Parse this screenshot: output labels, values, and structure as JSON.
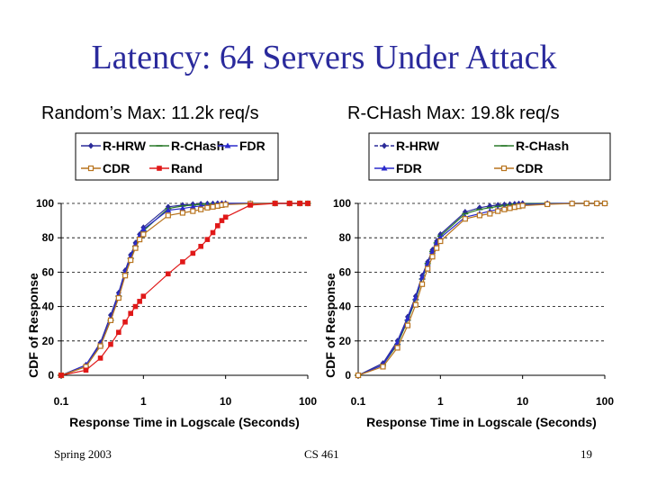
{
  "slide": {
    "title": "Latency: 64 Servers Under Attack",
    "footer_left": "Spring 2003",
    "footer_center": "CS 461",
    "footer_right": "19"
  },
  "chart_data": [
    {
      "type": "line",
      "title": "Random’s Max: 11.2k req/s",
      "xlabel": "Response Time in Logscale (Seconds)",
      "ylabel": "CDF of Response",
      "xscale": "log",
      "xlim": [
        0.1,
        100
      ],
      "ylim": [
        0,
        100
      ],
      "xticks": [
        "0.1",
        "1",
        "10",
        "100"
      ],
      "yticks": [
        "0",
        "20",
        "40",
        "60",
        "80",
        "100"
      ],
      "grid": "horizontal dashed",
      "legend_position": "top",
      "series": [
        {
          "name": "R-HRW",
          "color": "#2b2b99",
          "marker": "diamond",
          "x": [
            0.1,
            0.2,
            0.3,
            0.4,
            0.5,
            0.6,
            0.7,
            0.8,
            0.9,
            1,
            2,
            3,
            4,
            5,
            6,
            7,
            8,
            9,
            10,
            20,
            40,
            60,
            80,
            100
          ],
          "y": [
            0,
            6,
            19,
            35,
            48,
            61,
            70,
            77,
            82,
            86,
            98,
            99,
            99.5,
            99.7,
            99.8,
            99.9,
            100,
            100,
            100,
            100,
            100,
            100,
            100,
            100
          ]
        },
        {
          "name": "R-CHash",
          "color": "#2a7a2a",
          "marker": "dash",
          "x": [
            0.1,
            0.2,
            0.3,
            0.4,
            0.5,
            0.6,
            0.7,
            0.8,
            0.9,
            1,
            2,
            3,
            4,
            5,
            6,
            7,
            8,
            9,
            10,
            20,
            40,
            60,
            80,
            100
          ],
          "y": [
            0,
            5,
            17,
            32,
            46,
            59,
            68,
            75,
            80,
            84,
            97,
            98.5,
            99,
            99.5,
            99.7,
            99.8,
            99.9,
            100,
            100,
            100,
            100,
            100,
            100,
            100
          ]
        },
        {
          "name": "FDR",
          "color": "#2b2bcc",
          "marker": "triangle",
          "x": [
            0.1,
            0.2,
            0.3,
            0.4,
            0.5,
            0.6,
            0.7,
            0.8,
            0.9,
            1,
            2,
            3,
            4,
            5,
            6,
            7,
            8,
            9,
            10,
            20,
            40,
            60,
            80,
            100
          ],
          "y": [
            0,
            6,
            18,
            33,
            47,
            60,
            69,
            76,
            81,
            85,
            96,
            97,
            98,
            98.5,
            99,
            99.3,
            99.5,
            99.8,
            100,
            100,
            100,
            100,
            100,
            100
          ]
        },
        {
          "name": "CDR",
          "color": "#b8741e",
          "marker": "square-open",
          "x": [
            0.1,
            0.2,
            0.3,
            0.4,
            0.5,
            0.6,
            0.7,
            0.8,
            0.9,
            1,
            2,
            3,
            4,
            5,
            6,
            7,
            8,
            9,
            10,
            20,
            40,
            60,
            80,
            100
          ],
          "y": [
            0,
            5,
            17,
            32,
            45,
            58,
            67,
            74,
            79,
            82,
            93,
            94.5,
            95.5,
            96.5,
            97.5,
            98,
            98.5,
            99,
            99.3,
            99.8,
            100,
            100,
            100,
            100
          ]
        },
        {
          "name": "Rand",
          "color": "#e01818",
          "marker": "square",
          "x": [
            0.1,
            0.2,
            0.3,
            0.4,
            0.5,
            0.6,
            0.7,
            0.8,
            0.9,
            1,
            2,
            3,
            4,
            5,
            6,
            7,
            8,
            9,
            10,
            20,
            40,
            60,
            80,
            100
          ],
          "y": [
            0,
            3,
            10,
            18,
            25,
            31,
            36,
            40,
            43,
            46,
            59,
            66,
            71,
            75,
            79,
            83,
            87,
            90,
            92,
            99,
            100,
            100,
            100,
            100
          ]
        }
      ]
    },
    {
      "type": "line",
      "title": "R-CHash Max: 19.8k req/s",
      "xlabel": "Response Time in Logscale (Seconds)",
      "ylabel": "CDF of Response",
      "xscale": "log",
      "xlim": [
        0.1,
        100
      ],
      "ylim": [
        0,
        100
      ],
      "xticks": [
        "0.1",
        "1",
        "10",
        "100"
      ],
      "yticks": [
        "0",
        "20",
        "40",
        "60",
        "80",
        "100"
      ],
      "grid": "horizontal dashed",
      "legend_position": "top",
      "series": [
        {
          "name": "R-HRW",
          "color": "#2b2b99",
          "marker": "diamond",
          "x": [
            0.1,
            0.2,
            0.3,
            0.4,
            0.5,
            0.6,
            0.7,
            0.8,
            0.9,
            1,
            2,
            3,
            4,
            5,
            6,
            7,
            8,
            9,
            10,
            20,
            40,
            60,
            80,
            100
          ],
          "y": [
            0,
            7,
            20,
            34,
            46,
            58,
            66,
            73,
            78,
            82,
            95,
            97.5,
            98.5,
            99,
            99.3,
            99.5,
            99.7,
            99.8,
            100,
            100,
            100,
            100,
            100,
            100
          ]
        },
        {
          "name": "R-CHash",
          "color": "#2a7a2a",
          "marker": "dash",
          "x": [
            0.1,
            0.2,
            0.3,
            0.4,
            0.5,
            0.6,
            0.7,
            0.8,
            0.9,
            1,
            2,
            3,
            4,
            5,
            6,
            7,
            8,
            9,
            10,
            20,
            40,
            60,
            80,
            100
          ],
          "y": [
            0,
            6,
            18,
            32,
            44,
            56,
            65,
            72,
            77,
            81,
            94,
            96.5,
            97.5,
            98.2,
            98.8,
            99.2,
            99.5,
            99.7,
            99.9,
            100,
            100,
            100,
            100,
            100
          ]
        },
        {
          "name": "FDR",
          "color": "#2b2bcc",
          "marker": "triangle",
          "x": [
            0.1,
            0.2,
            0.3,
            0.4,
            0.5,
            0.6,
            0.7,
            0.8,
            0.9,
            1,
            2,
            3,
            4,
            5,
            6,
            7,
            8,
            9,
            10,
            20,
            40,
            60,
            80,
            100
          ],
          "y": [
            0,
            6,
            19,
            33,
            45,
            57,
            65,
            72,
            77,
            80,
            92,
            94,
            95.5,
            96.5,
            97.5,
            98,
            98.5,
            99,
            99.3,
            99.8,
            100,
            100,
            100,
            100
          ]
        },
        {
          "name": "CDR",
          "color": "#b8741e",
          "marker": "square-open",
          "x": [
            0.1,
            0.2,
            0.3,
            0.4,
            0.5,
            0.6,
            0.7,
            0.8,
            0.9,
            1,
            2,
            3,
            4,
            5,
            6,
            7,
            8,
            9,
            10,
            20,
            40,
            60,
            80,
            100
          ],
          "y": [
            0,
            5,
            16,
            29,
            41,
            53,
            62,
            69,
            74,
            78,
            91,
            93,
            94,
            95.5,
            96.5,
            97.2,
            97.8,
            98.3,
            98.7,
            99.5,
            99.9,
            100,
            100,
            100
          ]
        }
      ]
    }
  ]
}
